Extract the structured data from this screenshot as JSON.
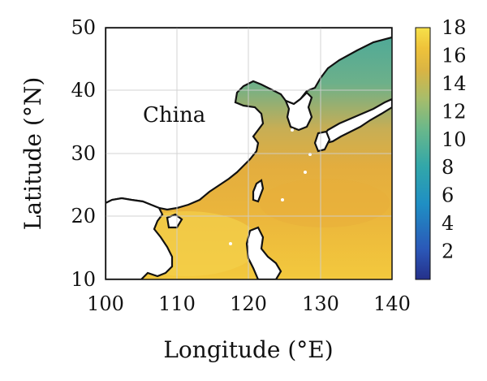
{
  "map": {
    "label": "China",
    "xlabel": "Longitude (°E)",
    "ylabel": "Latitude (°N)",
    "x_range": [
      100,
      140
    ],
    "y_range": [
      10,
      50
    ],
    "x_ticks": [
      "100",
      "110",
      "120",
      "130",
      "140"
    ],
    "y_ticks": [
      "10",
      "20",
      "30",
      "40",
      "50"
    ]
  },
  "colorbar": {
    "range": [
      0,
      18
    ],
    "ticks": [
      "2",
      "4",
      "6",
      "8",
      "10",
      "12",
      "14",
      "16",
      "18"
    ]
  },
  "colors": {
    "high": "#f2cc3a",
    "mid": "#e8b13c",
    "low": "#5fae96",
    "land": "#ffffff",
    "coast": "#111111",
    "grid": "#cfcfcf"
  }
}
